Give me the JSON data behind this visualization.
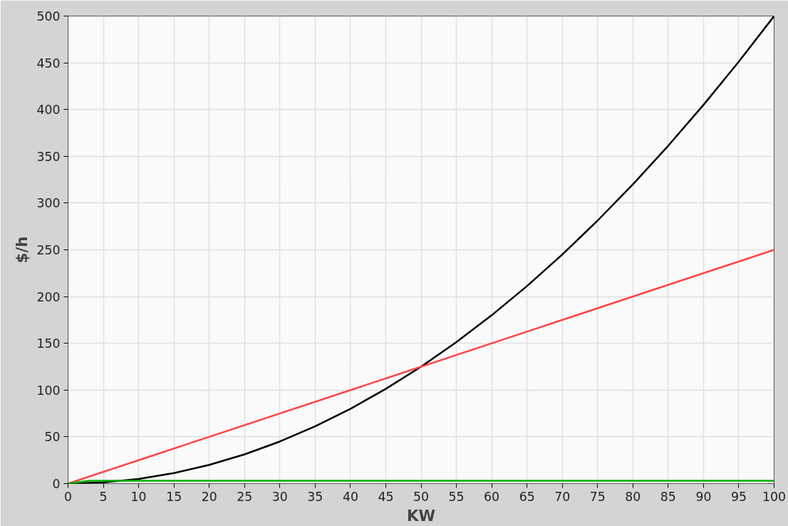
{
  "chart_data": {
    "type": "line",
    "xlabel": "KW",
    "ylabel": "$/h",
    "series": [
      {
        "color": "#000000",
        "x": [
          0,
          5,
          10,
          15,
          20,
          25,
          30,
          35,
          40,
          45,
          50,
          55,
          60,
          65,
          70,
          75,
          80,
          85,
          90,
          95,
          100
        ],
        "values": [
          0,
          1.25,
          5,
          11.25,
          20,
          31.25,
          45,
          61.25,
          80,
          101.25,
          125,
          151.25,
          180,
          211.25,
          245,
          281.25,
          320,
          361.25,
          405,
          451.25,
          500
        ]
      },
      {
        "color": "#ff4444",
        "x": [
          0,
          50,
          100
        ],
        "values": [
          0,
          125,
          250
        ]
      },
      {
        "color": "#00b000",
        "x": [
          0,
          3,
          100
        ],
        "values": [
          0,
          3,
          3
        ]
      }
    ],
    "xlim": [
      0,
      100
    ],
    "ylim": [
      0,
      500
    ],
    "xticks": [
      0,
      5,
      10,
      15,
      20,
      25,
      30,
      35,
      40,
      45,
      50,
      55,
      60,
      65,
      70,
      75,
      80,
      85,
      90,
      95,
      100
    ],
    "yticks": [
      0,
      50,
      100,
      150,
      200,
      250,
      300,
      350,
      400,
      450,
      500
    ],
    "grid": true,
    "marker": "none",
    "line_style": "solid"
  }
}
